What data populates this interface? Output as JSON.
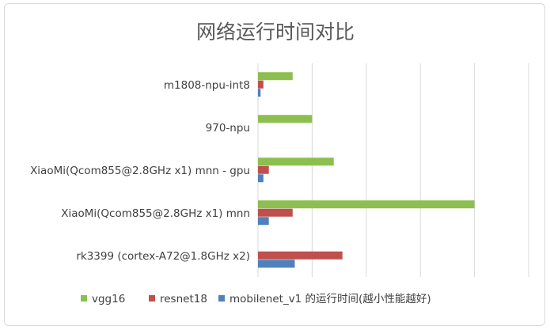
{
  "chart_data": {
    "type": "bar",
    "orientation": "horizontal",
    "title": "网络运行时间对比",
    "categories": [
      "m1808-npu-int8",
      "970-npu",
      "XiaoMi(Qcom855@2.8GHz x1) mnn - gpu",
      "XiaoMi(Qcom855@2.8GHz x1) mnn",
      "rk3399 (cortex-A72@1.8GHz x2)"
    ],
    "series": [
      {
        "name": "vgg16",
        "color": "#8cbf4f",
        "values": [
          16,
          25,
          35,
          100,
          null
        ]
      },
      {
        "name": "resnet18",
        "color": "#c0504d",
        "values": [
          2.5,
          null,
          5,
          16,
          39
        ]
      },
      {
        "name": "mobilenet_v1 的运行时间(越小性能越好)",
        "color": "#4f81bd",
        "values": [
          1.2,
          null,
          2.5,
          5,
          17
        ]
      }
    ],
    "xlim": [
      0,
      125
    ],
    "grid": true,
    "legend_position": "bottom",
    "xtick_labels_visible": false
  }
}
